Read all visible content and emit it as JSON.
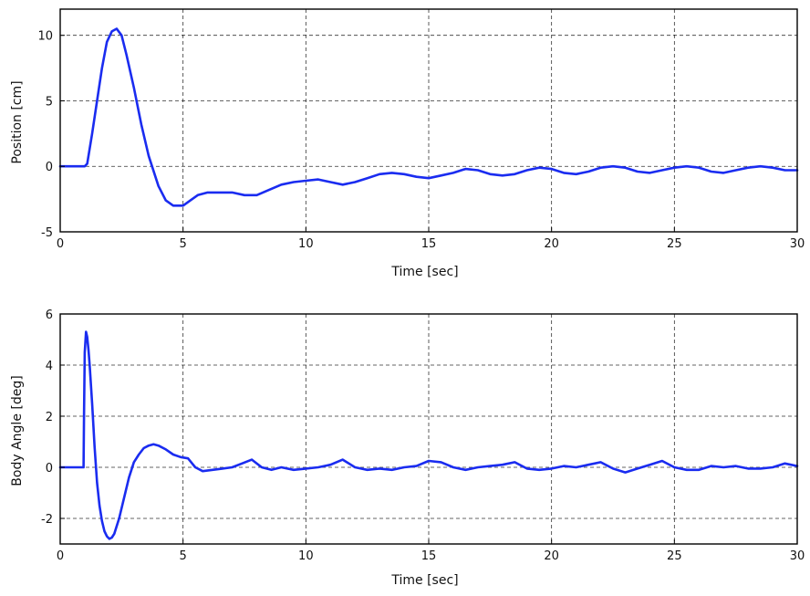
{
  "chart_data": [
    {
      "type": "line",
      "xlabel": "Time [sec]",
      "ylabel": "Position [cm]",
      "xlim": [
        0,
        30
      ],
      "ylim": [
        -5,
        12
      ],
      "xticks": [
        0,
        5,
        10,
        15,
        20,
        25,
        30
      ],
      "xtick_labels": [
        "0",
        "5",
        "10",
        "15",
        "20",
        "25",
        "30"
      ],
      "yticks": [
        -5,
        0,
        5,
        10
      ],
      "ytick_labels": [
        "-5",
        "0",
        "5",
        "10"
      ],
      "grid": true,
      "color": "#1a2cf0",
      "series": [
        {
          "x": [
            0,
            1.0,
            1.1,
            1.3,
            1.5,
            1.7,
            1.9,
            2.1,
            2.3,
            2.5,
            2.7,
            3.0,
            3.3,
            3.6,
            4.0,
            4.3,
            4.6,
            5.0,
            5.3,
            5.6,
            6.0,
            6.5,
            7.0,
            7.5,
            8.0,
            8.5,
            9.0,
            9.5,
            10.0,
            10.5,
            11.0,
            11.5,
            12.0,
            12.5,
            13.0,
            13.5,
            14.0,
            14.5,
            15.0,
            15.5,
            16.0,
            16.5,
            17.0,
            17.5,
            18.0,
            18.5,
            19.0,
            19.5,
            20.0,
            20.5,
            21.0,
            21.5,
            22.0,
            22.5,
            23.0,
            23.5,
            24.0,
            24.5,
            25.0,
            25.5,
            26.0,
            26.5,
            27.0,
            27.5,
            28.0,
            28.5,
            29.0,
            29.5,
            30.0
          ],
          "y": [
            0,
            0,
            0.2,
            2.5,
            5.0,
            7.5,
            9.5,
            10.3,
            10.5,
            10.0,
            8.5,
            6.0,
            3.2,
            0.8,
            -1.5,
            -2.6,
            -3.0,
            -3.0,
            -2.6,
            -2.2,
            -2.0,
            -2.0,
            -2.0,
            -2.2,
            -2.2,
            -1.8,
            -1.4,
            -1.2,
            -1.1,
            -1.0,
            -1.2,
            -1.4,
            -1.2,
            -0.9,
            -0.6,
            -0.5,
            -0.6,
            -0.8,
            -0.9,
            -0.7,
            -0.5,
            -0.2,
            -0.3,
            -0.6,
            -0.7,
            -0.6,
            -0.3,
            -0.1,
            -0.2,
            -0.5,
            -0.6,
            -0.4,
            -0.1,
            0.0,
            -0.1,
            -0.4,
            -0.5,
            -0.3,
            -0.1,
            0.0,
            -0.1,
            -0.4,
            -0.5,
            -0.3,
            -0.1,
            0.0,
            -0.1,
            -0.3,
            -0.3
          ]
        }
      ]
    },
    {
      "type": "line",
      "xlabel": "Time [sec]",
      "ylabel": "Body Angle [deg]",
      "xlim": [
        0,
        30
      ],
      "ylim": [
        -3,
        6
      ],
      "xticks": [
        0,
        5,
        10,
        15,
        20,
        25,
        30
      ],
      "xtick_labels": [
        "0",
        "5",
        "10",
        "15",
        "20",
        "25",
        "30"
      ],
      "yticks": [
        -2,
        0,
        2,
        4,
        6
      ],
      "ytick_labels": [
        "-2",
        "0",
        "2",
        "4",
        "6"
      ],
      "grid": true,
      "color": "#1a2cf0",
      "series": [
        {
          "x": [
            0,
            0.95,
            0.97,
            1.0,
            1.05,
            1.1,
            1.15,
            1.2,
            1.3,
            1.4,
            1.5,
            1.6,
            1.7,
            1.8,
            1.9,
            2.0,
            2.1,
            2.2,
            2.4,
            2.6,
            2.8,
            3.0,
            3.2,
            3.4,
            3.6,
            3.8,
            4.0,
            4.3,
            4.6,
            4.9,
            5.2,
            5.5,
            5.8,
            6.2,
            6.6,
            7.0,
            7.4,
            7.8,
            8.2,
            8.6,
            9.0,
            9.5,
            10.0,
            10.5,
            11.0,
            11.5,
            12.0,
            12.5,
            13.0,
            13.5,
            14.0,
            14.5,
            15.0,
            15.5,
            16.0,
            16.5,
            17.0,
            17.5,
            18.0,
            18.5,
            19.0,
            19.5,
            20.0,
            20.5,
            21.0,
            21.5,
            22.0,
            22.5,
            23.0,
            23.5,
            24.0,
            24.5,
            25.0,
            25.5,
            26.0,
            26.5,
            27.0,
            27.5,
            28.0,
            28.5,
            29.0,
            29.5,
            30.0
          ],
          "y": [
            0,
            0,
            2.0,
            4.5,
            5.3,
            5.1,
            4.6,
            4.0,
            2.5,
            0.8,
            -0.6,
            -1.5,
            -2.1,
            -2.5,
            -2.7,
            -2.8,
            -2.75,
            -2.6,
            -2.0,
            -1.2,
            -0.4,
            0.2,
            0.5,
            0.75,
            0.85,
            0.9,
            0.85,
            0.7,
            0.5,
            0.4,
            0.35,
            0.0,
            -0.15,
            -0.1,
            -0.05,
            0.0,
            0.15,
            0.3,
            0.0,
            -0.1,
            0.0,
            -0.1,
            -0.05,
            0.0,
            0.1,
            0.3,
            0.0,
            -0.1,
            -0.05,
            -0.1,
            0.0,
            0.05,
            0.25,
            0.2,
            0.0,
            -0.1,
            0.0,
            0.05,
            0.1,
            0.2,
            -0.05,
            -0.1,
            -0.05,
            0.05,
            0.0,
            0.1,
            0.2,
            -0.05,
            -0.2,
            -0.05,
            0.1,
            0.25,
            0.0,
            -0.1,
            -0.1,
            0.05,
            0.0,
            0.05,
            -0.05,
            -0.05,
            0.0,
            0.15,
            0.05
          ]
        }
      ]
    }
  ]
}
